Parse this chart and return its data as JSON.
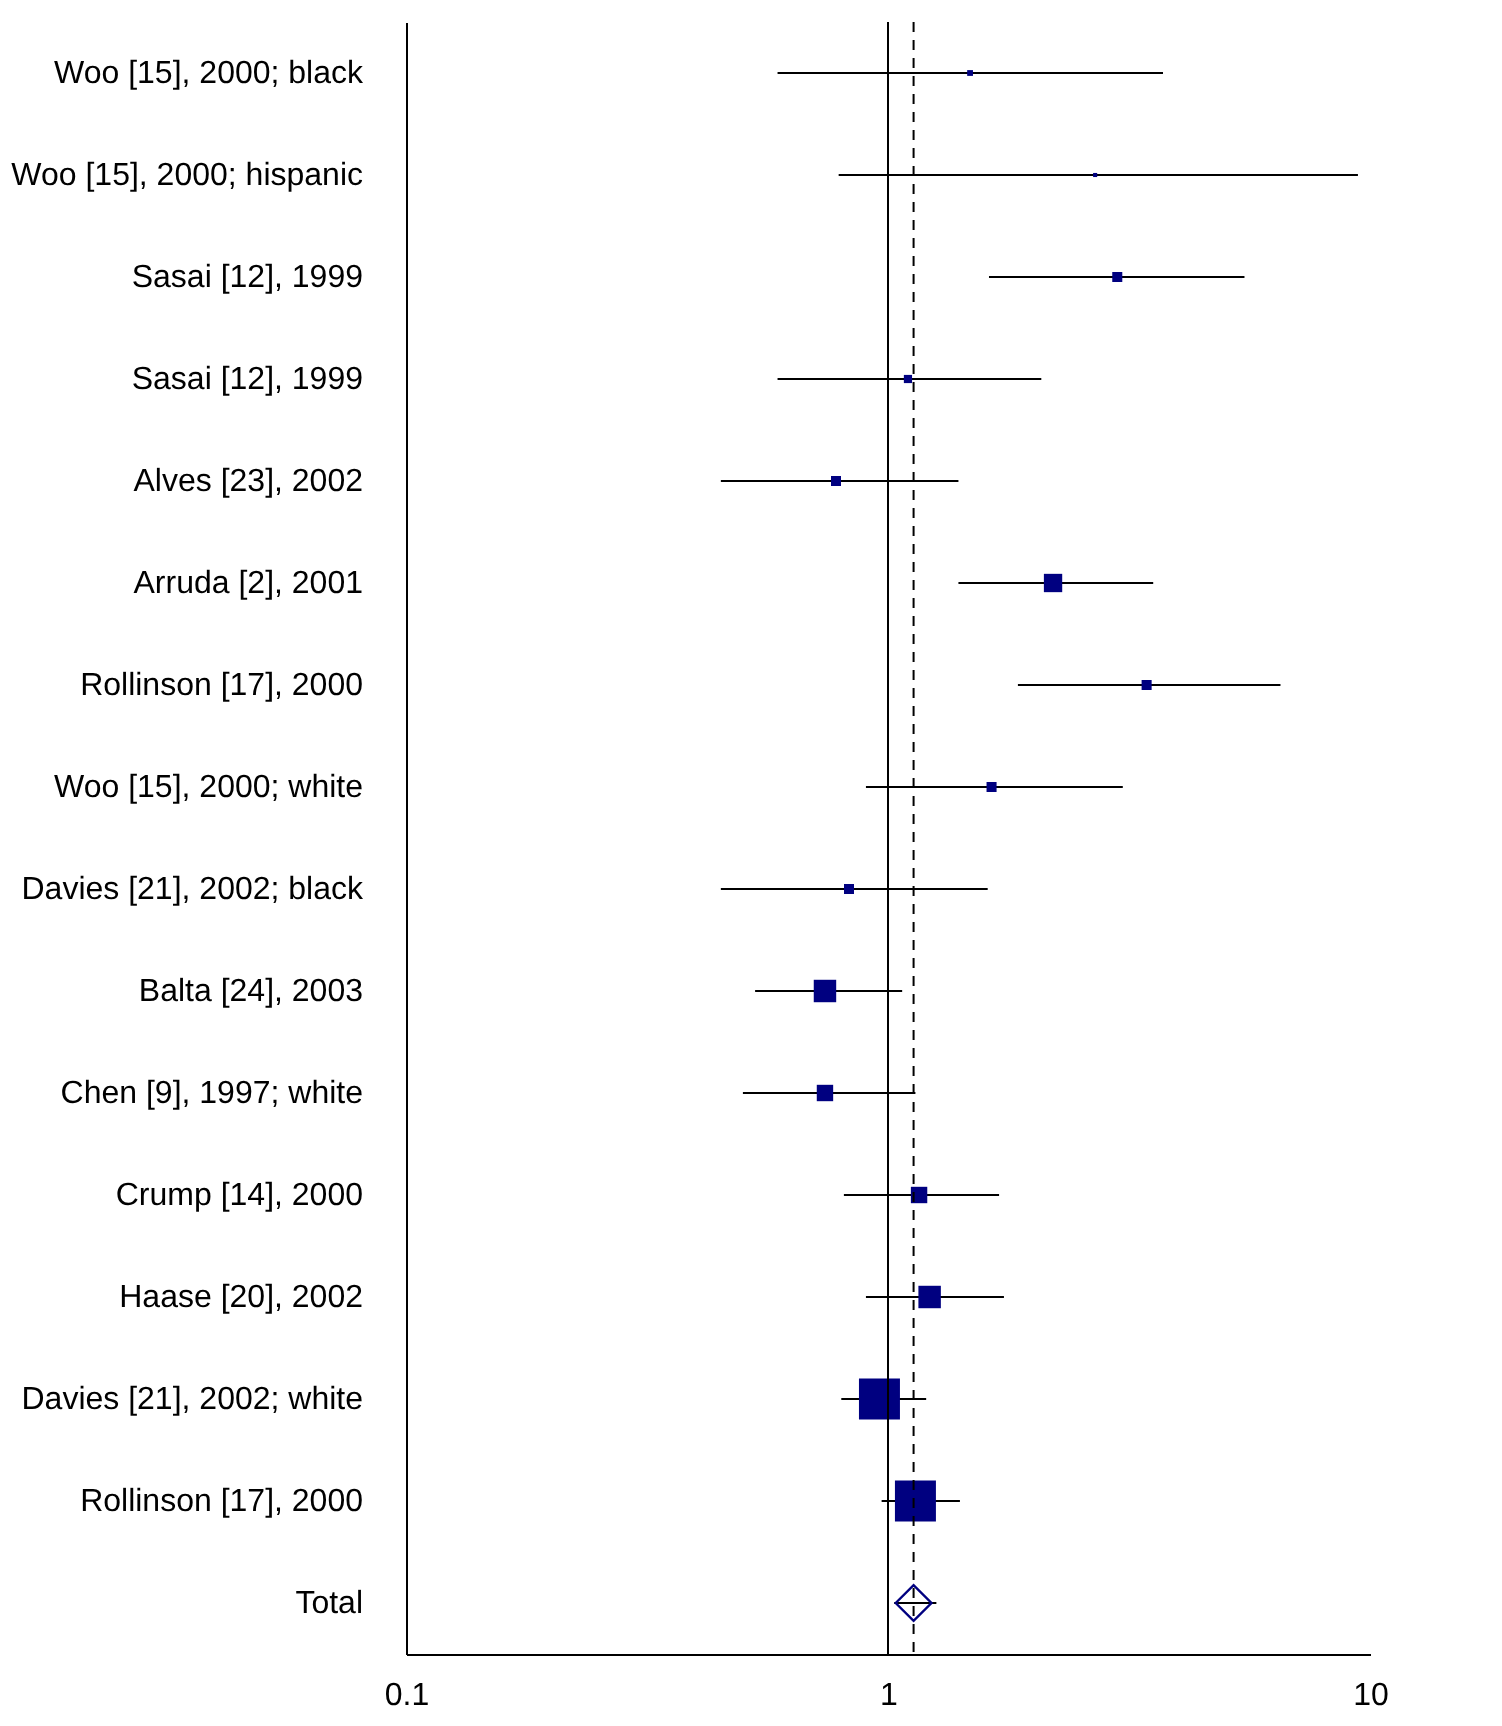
{
  "chart_data": {
    "type": "bubble",
    "orientation": "horizontal",
    "categories": [
      "Woo [15], 2000; black",
      "Woo [15], 2000; hispanic",
      "Sasai [12], 1999",
      "Sasai [12], 1999",
      "Alves [23], 2002",
      "Arruda [2], 2001",
      "Rollinson [17], 2000",
      "Woo [15], 2000; white",
      "Davies [21], 2002; black",
      "Balta [24], 2003",
      "Chen [9], 1997; white",
      "Crump [14], 2000",
      "Haase [20], 2002",
      "Davies [21], 2002; white",
      "Rollinson [17], 2000",
      "Total"
    ],
    "xlim": [
      0.1,
      10
    ],
    "xticks": [
      0.1,
      1,
      10
    ],
    "log": "x",
    "grid": false,
    "legend": false,
    "series": [
      {
        "marker": "square",
        "color": "#000080",
        "values": [
          1.48,
          2.69,
          2.99,
          1.1,
          0.78,
          2.2,
          3.44,
          1.64,
          0.83,
          0.74,
          0.74,
          1.16,
          1.22,
          0.96,
          1.14,
          null
        ],
        "sizes": [
          0.02,
          0.01,
          0.06,
          0.04,
          0.06,
          0.2,
          0.06,
          0.06,
          0.06,
          0.3,
          0.16,
          0.16,
          0.3,
          1,
          1,
          null
        ],
        "errors": [
          [
            0.59,
            3.72
          ],
          [
            0.79,
            9.44
          ],
          [
            1.62,
            5.49
          ],
          [
            0.59,
            2.08
          ],
          [
            0.45,
            1.4
          ],
          [
            1.4,
            3.55
          ],
          [
            1.86,
            6.52
          ],
          [
            0.9,
            3.07
          ],
          [
            0.45,
            1.61
          ],
          [
            0.53,
            1.07
          ],
          [
            0.5,
            1.14
          ],
          [
            0.81,
            1.7
          ],
          [
            0.9,
            1.74
          ],
          [
            0.8,
            1.2
          ],
          [
            0.97,
            1.41
          ],
          null
        ]
      },
      {
        "type": "scatter",
        "marker": "diamond",
        "color": "#000080",
        "values": [
          null,
          null,
          null,
          null,
          null,
          null,
          null,
          null,
          null,
          null,
          null,
          null,
          null,
          null,
          null,
          1.13
        ],
        "errors": [
          null,
          null,
          null,
          null,
          null,
          null,
          null,
          null,
          null,
          null,
          null,
          null,
          null,
          null,
          null,
          [
            1.03,
            1.26
          ]
        ]
      }
    ],
    "ref_lines": [
      {
        "axis": "x",
        "value": 1,
        "color": "#000000",
        "line_style": "solid"
      },
      {
        "axis": "x",
        "value": 1.13,
        "color": "#000000",
        "line_style": "dashed"
      }
    ]
  }
}
